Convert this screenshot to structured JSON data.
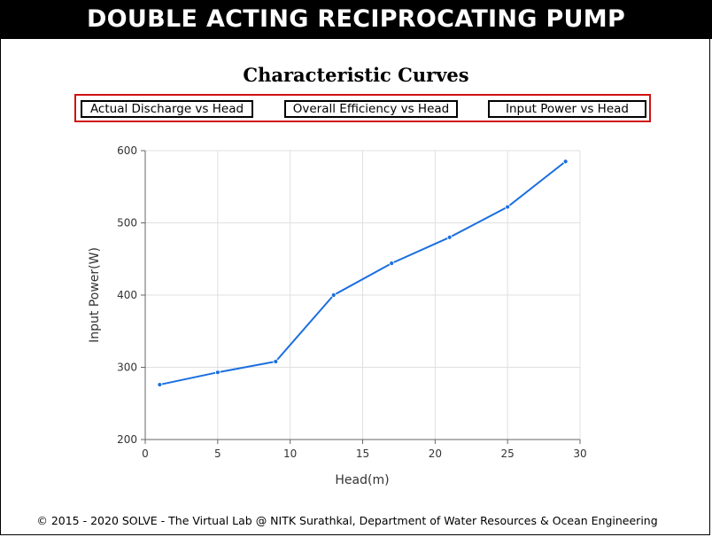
{
  "header": {
    "title": "DOUBLE ACTING RECIPROCATING PUMP"
  },
  "section": {
    "title": "Characteristic Curves"
  },
  "buttons": [
    {
      "label": "Actual Discharge vs Head"
    },
    {
      "label": "Overall Efficiency vs Head"
    },
    {
      "label": "Input Power vs Head"
    }
  ],
  "chart_data": {
    "type": "line",
    "title": "",
    "xlabel": "Head(m)",
    "ylabel": "Input Power(W)",
    "xlim": [
      0,
      30
    ],
    "ylim": [
      200,
      600
    ],
    "xticks": [
      0,
      5,
      10,
      15,
      20,
      25,
      30
    ],
    "yticks": [
      200,
      300,
      400,
      500,
      600
    ],
    "grid": true,
    "line_color": "#1a6fe0",
    "series": [
      {
        "x": [
          1,
          5,
          9,
          13,
          17,
          21,
          25,
          29
        ],
        "y": [
          276,
          293,
          308,
          400,
          444,
          480,
          522,
          585
        ]
      }
    ]
  },
  "footer": {
    "text": "© 2015 - 2020 SOLVE - The Virtual Lab @ NITK Surathkal, Department of Water Resources & Ocean Engineering"
  }
}
